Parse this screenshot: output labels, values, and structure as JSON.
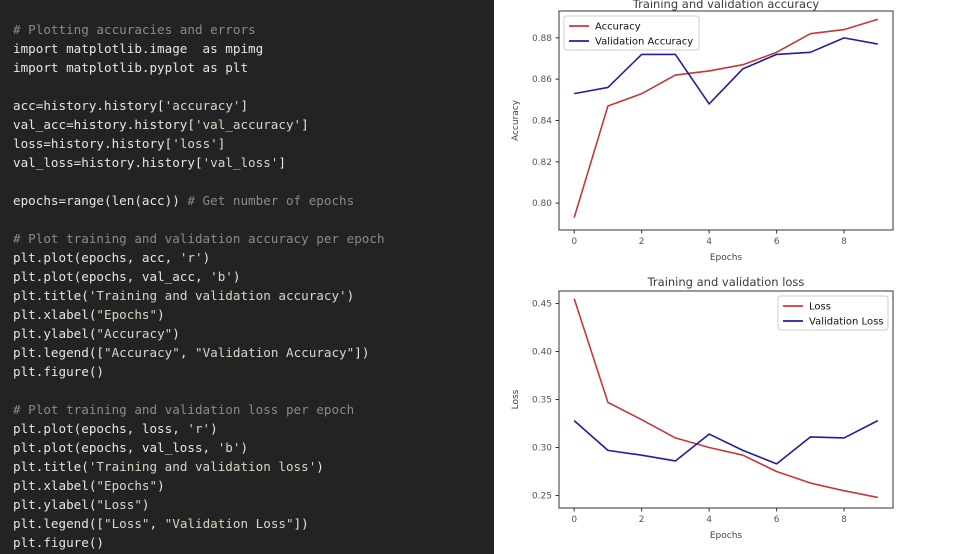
{
  "code": {
    "lines": [
      {
        "text": "# Plotting accuracies and errors",
        "kind": "comment"
      },
      {
        "text": "import matplotlib.image  as mpimg",
        "kind": "code"
      },
      {
        "text": "import matplotlib.pyplot as plt",
        "kind": "code"
      },
      {
        "text": "",
        "kind": "blank"
      },
      {
        "text": "acc=history.history['accuracy']",
        "kind": "code"
      },
      {
        "text": "val_acc=history.history['val_accuracy']",
        "kind": "code"
      },
      {
        "text": "loss=history.history['loss']",
        "kind": "code"
      },
      {
        "text": "val_loss=history.history['val_loss']",
        "kind": "code"
      },
      {
        "text": "",
        "kind": "blank"
      },
      {
        "text": "epochs=range(len(acc)) # Get number of epochs",
        "kind": "code-comment",
        "split": 23
      },
      {
        "text": "",
        "kind": "blank"
      },
      {
        "text": "# Plot training and validation accuracy per epoch",
        "kind": "comment"
      },
      {
        "text": "plt.plot(epochs, acc, 'r')",
        "kind": "code"
      },
      {
        "text": "plt.plot(epochs, val_acc, 'b')",
        "kind": "code"
      },
      {
        "text": "plt.title('Training and validation accuracy')",
        "kind": "code"
      },
      {
        "text": "plt.xlabel(\"Epochs\")",
        "kind": "code"
      },
      {
        "text": "plt.ylabel(\"Accuracy\")",
        "kind": "code"
      },
      {
        "text": "plt.legend([\"Accuracy\", \"Validation Accuracy\"])",
        "kind": "code"
      },
      {
        "text": "plt.figure()",
        "kind": "code"
      },
      {
        "text": "",
        "kind": "blank"
      },
      {
        "text": "# Plot training and validation loss per epoch",
        "kind": "comment"
      },
      {
        "text": "plt.plot(epochs, loss, 'r')",
        "kind": "code"
      },
      {
        "text": "plt.plot(epochs, val_loss, 'b')",
        "kind": "code"
      },
      {
        "text": "plt.title('Training and validation loss')",
        "kind": "code"
      },
      {
        "text": "plt.xlabel(\"Epochs\")",
        "kind": "code"
      },
      {
        "text": "plt.ylabel(\"Loss\")",
        "kind": "code"
      },
      {
        "text": "plt.legend([\"Loss\", \"Validation Loss\"])",
        "kind": "code"
      },
      {
        "text": "plt.figure()",
        "kind": "code"
      }
    ]
  },
  "colors": {
    "train": "#c0393b",
    "validation": "#1f1f9a"
  },
  "chart_data": [
    {
      "type": "line",
      "title": "Training and validation accuracy",
      "xlabel": "Epochs",
      "ylabel": "Accuracy",
      "xlim": [
        -0.45,
        9.45
      ],
      "ylim": [
        0.787,
        0.893
      ],
      "xticks": [
        0,
        2,
        4,
        6,
        8
      ],
      "yticks": [
        0.8,
        0.82,
        0.84,
        0.86,
        0.88
      ],
      "ytick_labels": [
        "0.80",
        "0.82",
        "0.84",
        "0.86",
        "0.88"
      ],
      "legend_position": "upper-left",
      "x": [
        0,
        1,
        2,
        3,
        4,
        5,
        6,
        7,
        8,
        9
      ],
      "series": [
        {
          "name": "Accuracy",
          "color": "#c0393b",
          "values": [
            0.793,
            0.847,
            0.853,
            0.862,
            0.864,
            0.867,
            0.873,
            0.882,
            0.884,
            0.889
          ]
        },
        {
          "name": "Validation Accuracy",
          "color": "#1f1f9a",
          "values": [
            0.853,
            0.856,
            0.872,
            0.872,
            0.848,
            0.865,
            0.872,
            0.873,
            0.88,
            0.877
          ]
        }
      ]
    },
    {
      "type": "line",
      "title": "Training and validation loss",
      "xlabel": "Epochs",
      "ylabel": "Loss",
      "xlim": [
        -0.45,
        9.45
      ],
      "ylim": [
        0.237,
        0.463
      ],
      "xticks": [
        0,
        2,
        4,
        6,
        8
      ],
      "yticks": [
        0.25,
        0.3,
        0.35,
        0.4,
        0.45
      ],
      "ytick_labels": [
        "0.25",
        "0.30",
        "0.35",
        "0.40",
        "0.45"
      ],
      "legend_position": "upper-right",
      "x": [
        0,
        1,
        2,
        3,
        4,
        5,
        6,
        7,
        8,
        9
      ],
      "series": [
        {
          "name": "Loss",
          "color": "#c0393b",
          "values": [
            0.455,
            0.347,
            0.329,
            0.31,
            0.3,
            0.292,
            0.275,
            0.263,
            0.255,
            0.248
          ]
        },
        {
          "name": "Validation Loss",
          "color": "#1f1f9a",
          "values": [
            0.328,
            0.297,
            0.292,
            0.286,
            0.314,
            0.297,
            0.283,
            0.311,
            0.31,
            0.328
          ]
        }
      ]
    }
  ]
}
